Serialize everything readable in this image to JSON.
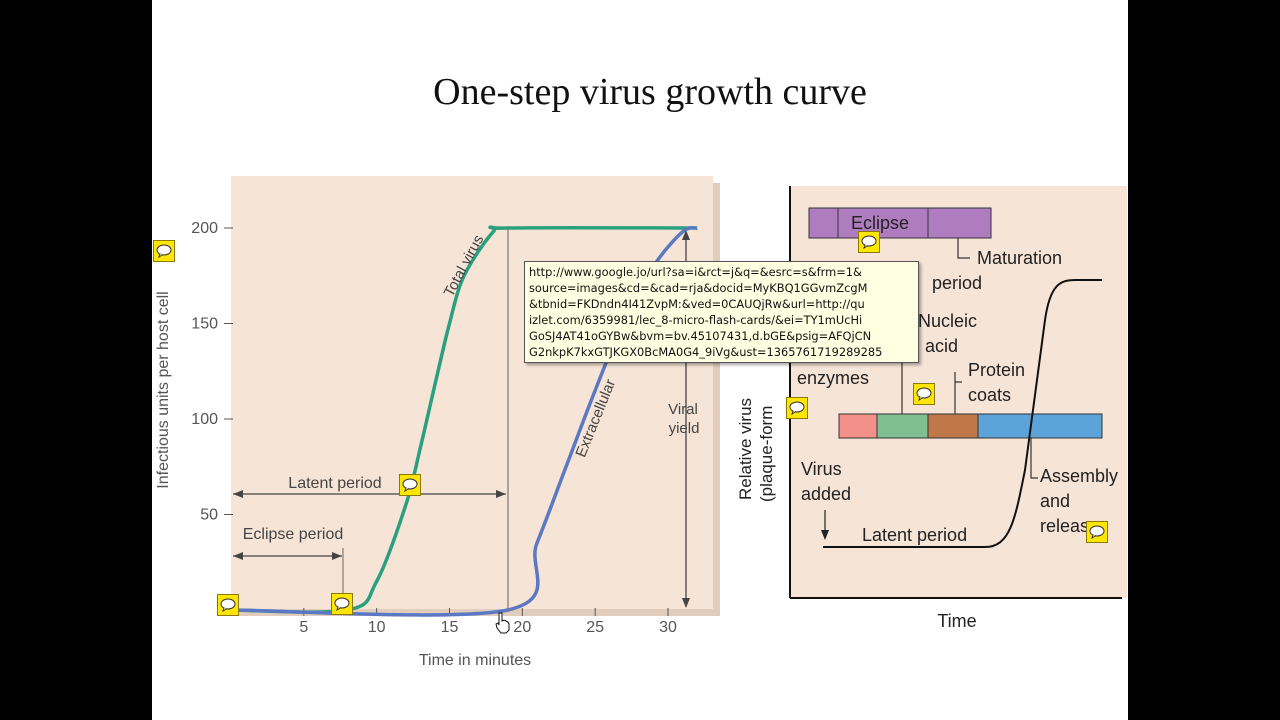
{
  "slide": {
    "title": "One-step virus growth curve"
  },
  "left_chart": {
    "y_axis_label": "Infectious units per host cell",
    "x_axis_label": "Time in minutes",
    "y_ticks": [
      "50",
      "100",
      "150",
      "200"
    ],
    "x_ticks": [
      "5",
      "10",
      "15",
      "20",
      "25",
      "30"
    ],
    "total_virus_label": "Total virus",
    "extracellular_label": "Extracellular",
    "latent_period_label": "Latent period",
    "eclipse_period_label": "Eclipse period",
    "viral_yield_label_1": "Viral",
    "viral_yield_label_2": "yield",
    "colors": {
      "background": "#f6e4d6",
      "total_virus": "#2aa07f",
      "extracellular": "#5b79c2"
    }
  },
  "chart_data": {
    "type": "line",
    "xlabel": "Time in minutes",
    "ylabel": "Infectious units per host cell",
    "xlim": [
      0,
      33
    ],
    "ylim": [
      0,
      200
    ],
    "series": [
      {
        "name": "Total virus",
        "x": [
          0,
          8,
          10,
          12,
          13,
          14,
          15,
          16,
          18,
          19,
          32
        ],
        "values": [
          0,
          0,
          15,
          55,
          85,
          118,
          150,
          175,
          198,
          200,
          200
        ]
      },
      {
        "name": "Extracellular virus",
        "x": [
          0,
          19,
          21,
          23,
          25,
          27,
          29,
          31,
          32
        ],
        "values": [
          0,
          0,
          35,
          75,
          115,
          152,
          180,
          198,
          200
        ]
      }
    ]
  },
  "right_diagram": {
    "eclipse_label": "Eclipse",
    "maturation_label": "Maturation",
    "period_label": "period",
    "nucleic_label": "Nucleic",
    "acid_label": "acid",
    "enzymes_label": "enzymes",
    "protein_label": "Protein",
    "coats_label": "coats",
    "virus_label": "Virus",
    "added_label": "added",
    "latent_period_label": "Latent period",
    "assembly_label": "Assembly",
    "and_label": "and",
    "release_label": "releas",
    "y_axis_label_1": "Relative virus",
    "y_axis_label_2": "(plaque-form",
    "x_axis_label": "Time",
    "colors": {
      "eclipse_bar": "#b07cc0",
      "pink": "#f4908a",
      "green": "#7fbf90",
      "brown": "#c0784a",
      "blue": "#5ba3d9",
      "background": "#f6e4d6"
    }
  },
  "tooltip": {
    "url_text": "http://www.google.jo/url?sa=i&rct=j&q=&esrc=s&frm=1&\nsource=images&cd=&cad=rja&docid=MyKBQ1GGvmZcgM\n&tbnid=FKDndn4I41ZvpM:&ved=0CAUQjRw&url=http://qu\nizlet.com/6359981/lec_8-micro-flash-cards/&ei=TY1mUcHi\nGoSJ4AT41oGYBw&bvm=bv.45107431,d.bGE&psig=AFQjCN\nG2nkpK7kxGTJKGX0BcMA0G4_9iVg&ust=1365761719289285"
  },
  "comments": {
    "icon": "speech-bubble-icon",
    "color": "#ffe600"
  }
}
